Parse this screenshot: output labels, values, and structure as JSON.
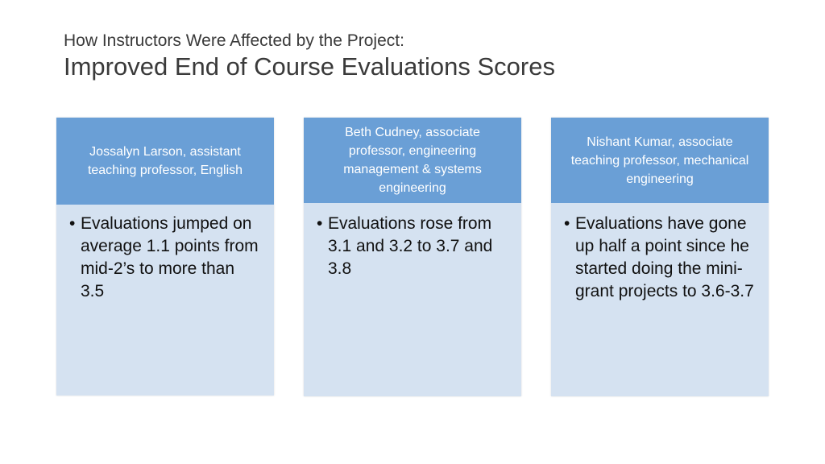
{
  "header": {
    "subtitle": "How Instructors Were Affected by the Project:",
    "title": "Improved End of Course Evaluations Scores"
  },
  "cards": [
    {
      "header": "Jossalyn Larson, assistant teaching professor, English",
      "bullet": "Evaluations jumped on average 1.1 points from mid-2’s to more than 3.5"
    },
    {
      "header": "Beth Cudney, associate professor, engineering management & systems engineering",
      "bullet": "Evaluations rose from 3.1 and 3.2 to 3.7 and 3.8"
    },
    {
      "header": "Nishant Kumar, associate teaching professor, mechanical engineering",
      "bullet": "Evaluations have gone up half a point since he started doing the mini-grant projects to 3.6-3.7"
    }
  ],
  "colors": {
    "header_fill": "#6a9fd6",
    "body_fill": "#d5e2f1"
  }
}
